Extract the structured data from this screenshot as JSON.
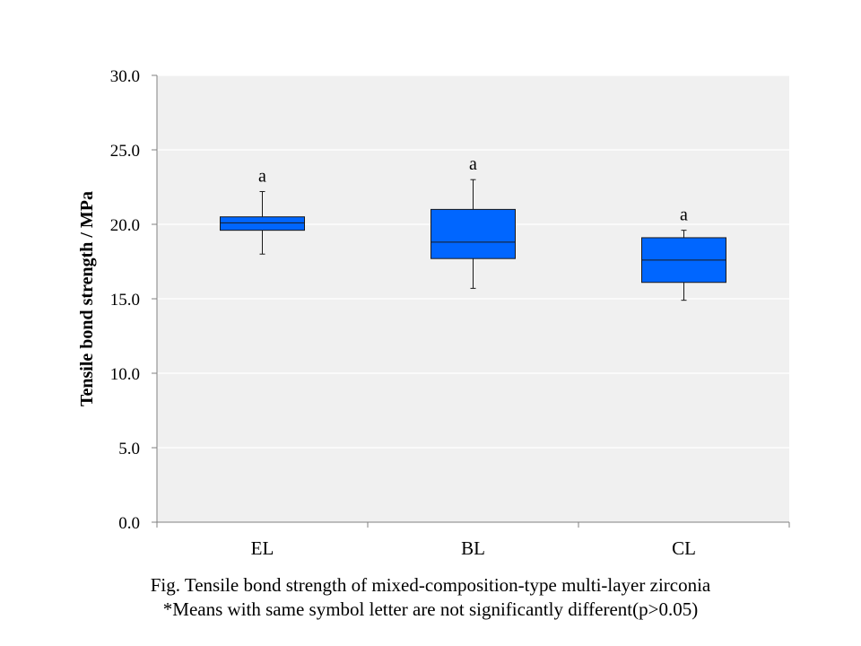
{
  "chart_data": {
    "type": "box",
    "ylabel": "Tensile bond strength / MPa",
    "xlabel": "",
    "ylim": [
      0,
      30
    ],
    "y_ticks": [
      0,
      5,
      10,
      15,
      20,
      25,
      30
    ],
    "y_tick_labels": [
      "0.0",
      "5.0",
      "10.0",
      "15.0",
      "20.0",
      "25.0",
      "30.0"
    ],
    "categories": [
      "EL",
      "BL",
      "CL"
    ],
    "boxes": [
      {
        "category": "EL",
        "min": 18.0,
        "q1": 19.6,
        "median": 20.1,
        "q3": 20.5,
        "max": 22.2,
        "significance": "a"
      },
      {
        "category": "BL",
        "min": 15.7,
        "q1": 17.7,
        "median": 18.8,
        "q3": 21.0,
        "max": 23.0,
        "significance": "a"
      },
      {
        "category": "CL",
        "min": 14.9,
        "q1": 16.1,
        "median": 17.6,
        "q3": 19.1,
        "max": 19.6,
        "significance": "a"
      }
    ],
    "gridlines": true,
    "colors": {
      "box_fill": "#0066ff",
      "box_stroke": "#1a1a1a",
      "plot_background": "#f0f0f0",
      "gridline": "#ffffff",
      "axis": "#808080"
    }
  },
  "caption": {
    "line1": "Fig. Tensile bond strength of mixed-composition-type multi-layer zirconia",
    "line2": "*Means with same symbol letter are not significantly  different(p>0.05)"
  }
}
